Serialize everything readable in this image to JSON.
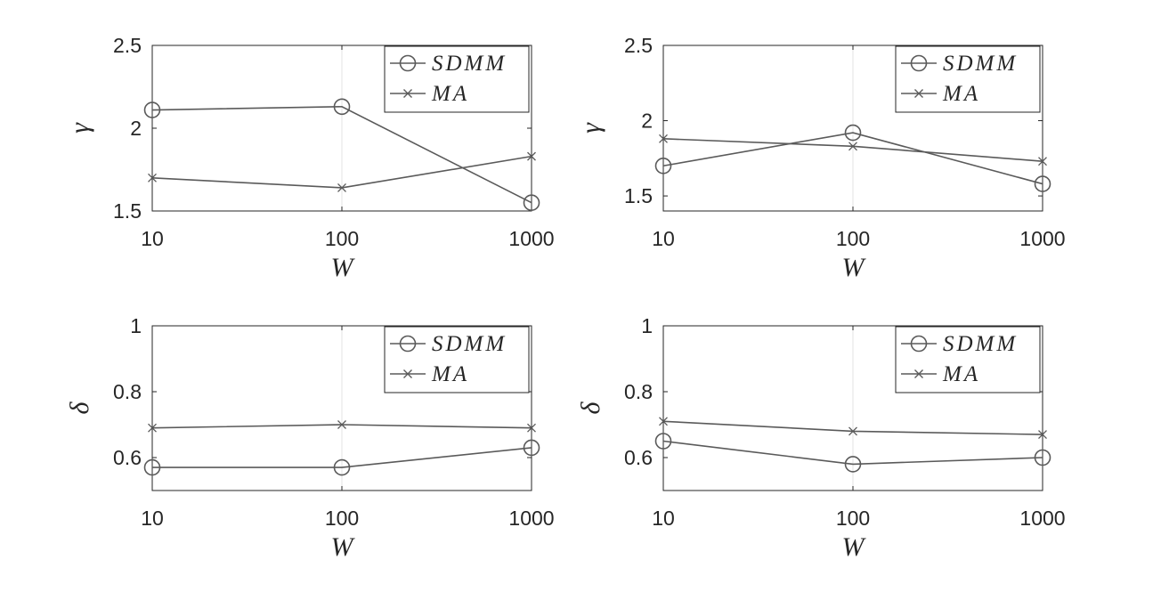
{
  "chart_data": [
    {
      "type": "line",
      "xlabel": "W",
      "ylabel": "γ",
      "x": [
        10,
        100,
        1000
      ],
      "xticks": [
        "10",
        "100",
        "1000"
      ],
      "xscale": "log",
      "ylim": [
        1.5,
        2.5
      ],
      "yticks": [
        "1.5",
        "2",
        "2.5"
      ],
      "ytick_values": [
        1.5,
        2.0,
        2.5
      ],
      "grid_x": [
        100
      ],
      "legend_position": "top-right",
      "series": [
        {
          "name": "SDMM",
          "marker": "o",
          "values": [
            2.11,
            2.13,
            1.55
          ]
        },
        {
          "name": "MA",
          "marker": "x",
          "values": [
            1.7,
            1.64,
            1.83
          ]
        }
      ]
    },
    {
      "type": "line",
      "xlabel": "W",
      "ylabel": "γ",
      "x": [
        10,
        100,
        1000
      ],
      "xticks": [
        "10",
        "100",
        "1000"
      ],
      "xscale": "log",
      "ylim": [
        1.4,
        2.5
      ],
      "yticks": [
        "1.5",
        "2",
        "2.5"
      ],
      "ytick_values": [
        1.5,
        2.0,
        2.5
      ],
      "grid_x": [
        100
      ],
      "legend_position": "top-right",
      "series": [
        {
          "name": "SDMM",
          "marker": "o",
          "values": [
            1.7,
            1.92,
            1.58
          ]
        },
        {
          "name": "MA",
          "marker": "x",
          "values": [
            1.88,
            1.83,
            1.73
          ]
        }
      ]
    },
    {
      "type": "line",
      "xlabel": "W",
      "ylabel": "δ",
      "x": [
        10,
        100,
        1000
      ],
      "xticks": [
        "10",
        "100",
        "1000"
      ],
      "xscale": "log",
      "ylim": [
        0.5,
        1.0
      ],
      "yticks": [
        "0.6",
        "0.8",
        "1"
      ],
      "ytick_values": [
        0.6,
        0.8,
        1.0
      ],
      "grid_x": [
        100
      ],
      "legend_position": "top-right",
      "series": [
        {
          "name": "SDMM",
          "marker": "o",
          "values": [
            0.57,
            0.57,
            0.63
          ]
        },
        {
          "name": "MA",
          "marker": "x",
          "values": [
            0.69,
            0.7,
            0.69
          ]
        }
      ]
    },
    {
      "type": "line",
      "xlabel": "W",
      "ylabel": "δ",
      "x": [
        10,
        100,
        1000
      ],
      "xticks": [
        "10",
        "100",
        "1000"
      ],
      "xscale": "log",
      "ylim": [
        0.5,
        1.0
      ],
      "yticks": [
        "0.6",
        "0.8",
        "1"
      ],
      "ytick_values": [
        0.6,
        0.8,
        1.0
      ],
      "grid_x": [
        100
      ],
      "legend_position": "top-right",
      "series": [
        {
          "name": "SDMM",
          "marker": "o",
          "values": [
            0.65,
            0.58,
            0.6
          ]
        },
        {
          "name": "MA",
          "marker": "x",
          "values": [
            0.71,
            0.68,
            0.67
          ]
        }
      ]
    }
  ]
}
